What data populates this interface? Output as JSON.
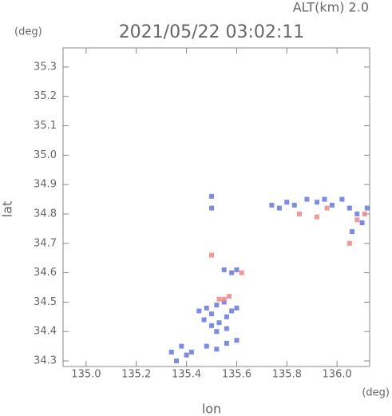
{
  "chart_data": {
    "type": "scatter",
    "title": "2021/05/22 03:02:11",
    "subtitle": "ALT(km) 2.0",
    "y_unit": "(deg)",
    "x_unit": "(deg)",
    "xlabel": "lon",
    "ylabel": "lat",
    "xlim": [
      134.908,
      136.13
    ],
    "ylim": [
      34.281,
      35.365
    ],
    "xticks": [
      {
        "value": 135.0,
        "label": "135.0"
      },
      135.2,
      135.4,
      135.6,
      135.8,
      {
        "value": 136.0,
        "label": "136.0"
      }
    ],
    "yticks": [
      34.3,
      34.4,
      34.5,
      34.6,
      34.7,
      34.8,
      34.9,
      {
        "value": 35.0,
        "label": "35.0"
      },
      35.1,
      35.2,
      35.3
    ],
    "series": [
      {
        "color": "#6677dd",
        "x": [
          135.5,
          135.5,
          135.74,
          135.77,
          135.8,
          135.83,
          135.88,
          135.92,
          135.95,
          135.98,
          136.02,
          136.05,
          136.08,
          136.1,
          136.12,
          136.06,
          135.55,
          135.58,
          135.6,
          135.45,
          135.48,
          135.5,
          135.52,
          135.55,
          135.47,
          135.5,
          135.53,
          135.56,
          135.58,
          135.6,
          135.52,
          135.56,
          135.34,
          135.36,
          135.38,
          135.4,
          135.42,
          135.48,
          135.52,
          135.56,
          135.6
        ],
        "y": [
          34.86,
          34.82,
          34.83,
          34.82,
          34.84,
          34.83,
          34.85,
          34.84,
          34.85,
          34.83,
          34.85,
          34.82,
          34.8,
          34.77,
          34.82,
          34.74,
          34.61,
          34.6,
          34.61,
          34.47,
          34.48,
          34.46,
          34.49,
          34.5,
          34.44,
          34.42,
          34.43,
          34.45,
          34.47,
          34.48,
          34.4,
          34.41,
          34.33,
          34.3,
          34.35,
          34.32,
          34.33,
          34.35,
          34.34,
          34.36,
          34.37
        ]
      },
      {
        "color": "#ee8888",
        "x": [
          135.5,
          135.53,
          135.55,
          135.57,
          135.85,
          135.92,
          136.05,
          136.08,
          136.11,
          135.62,
          135.96
        ],
        "y": [
          34.66,
          34.51,
          34.51,
          34.52,
          34.8,
          34.79,
          34.7,
          34.78,
          34.8,
          34.6,
          34.82
        ]
      }
    ]
  }
}
